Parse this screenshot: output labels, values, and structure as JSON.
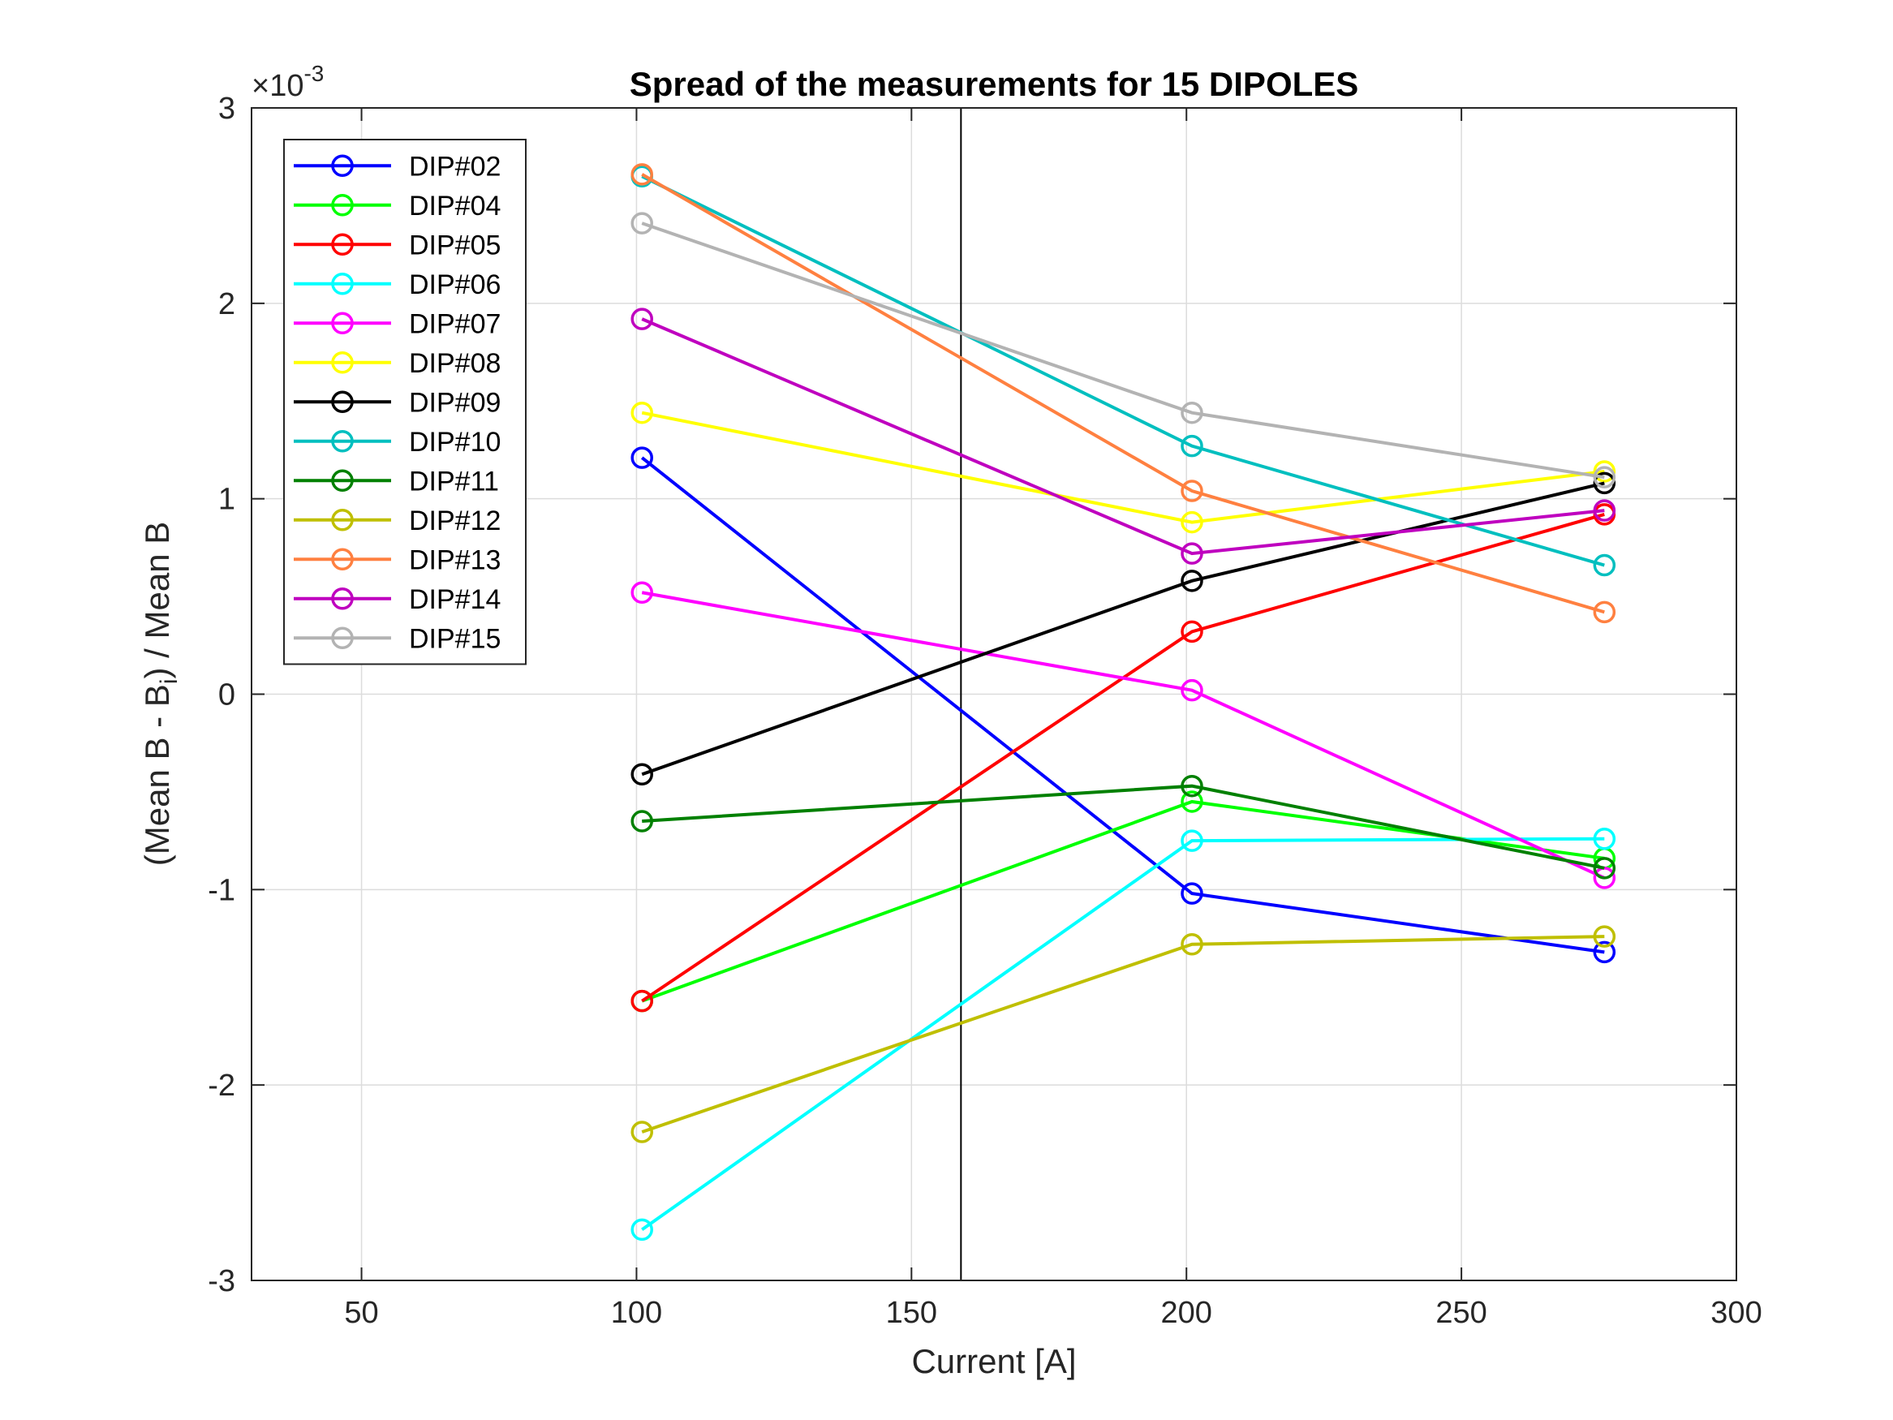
{
  "chart_data": {
    "type": "line",
    "title": "Spread of the measurements for 15 DIPOLES",
    "xlabel": "Current [A]",
    "ylabel_parts": {
      "pre": "(Mean B - B",
      "sub": "i",
      "post": ") / Mean B"
    },
    "exponent": {
      "base": "×10",
      "power": "-3"
    },
    "xlim": [
      30,
      300
    ],
    "ylim": [
      -3,
      3
    ],
    "xticks": [
      50,
      100,
      150,
      200,
      250,
      300
    ],
    "yticks": [
      -3,
      -2,
      -1,
      0,
      1,
      2,
      3
    ],
    "xtick_labels": [
      "50",
      "100",
      "150",
      "200",
      "250",
      "300"
    ],
    "ytick_labels": [
      "-3",
      "-2",
      "-1",
      "0",
      "1",
      "2",
      "3"
    ],
    "grid": true,
    "legend_position": "top-left",
    "reference_line_x": 159,
    "x": [
      101,
      201,
      276
    ],
    "series": [
      {
        "name": "DIP#02",
        "color": "#0000ff",
        "values": [
          1.21,
          -1.02,
          -1.32
        ]
      },
      {
        "name": "DIP#04",
        "color": "#00ff00",
        "values": [
          -1.57,
          -0.55,
          -0.84
        ]
      },
      {
        "name": "DIP#05",
        "color": "#ff0000",
        "values": [
          -1.57,
          0.32,
          0.92
        ]
      },
      {
        "name": "DIP#06",
        "color": "#00ffff",
        "values": [
          -2.74,
          -0.75,
          -0.74
        ]
      },
      {
        "name": "DIP#07",
        "color": "#ff00ff",
        "values": [
          0.52,
          0.02,
          -0.94
        ]
      },
      {
        "name": "DIP#08",
        "color": "#ffff00",
        "values": [
          1.44,
          0.88,
          1.14
        ]
      },
      {
        "name": "DIP#09",
        "color": "#000000",
        "values": [
          -0.41,
          0.58,
          1.08
        ]
      },
      {
        "name": "DIP#10",
        "color": "#00bfbf",
        "values": [
          2.65,
          1.27,
          0.66
        ]
      },
      {
        "name": "DIP#11",
        "color": "#008000",
        "values": [
          -0.65,
          -0.47,
          -0.89
        ]
      },
      {
        "name": "DIP#12",
        "color": "#bfbf00",
        "values": [
          -2.24,
          -1.28,
          -1.24
        ]
      },
      {
        "name": "DIP#13",
        "color": "#ff8040",
        "values": [
          2.66,
          1.04,
          0.42
        ]
      },
      {
        "name": "DIP#14",
        "color": "#bf00bf",
        "values": [
          1.92,
          0.72,
          0.94
        ]
      },
      {
        "name": "DIP#15",
        "color": "#b3b3b3",
        "values": [
          2.41,
          1.44,
          1.11
        ]
      }
    ]
  }
}
